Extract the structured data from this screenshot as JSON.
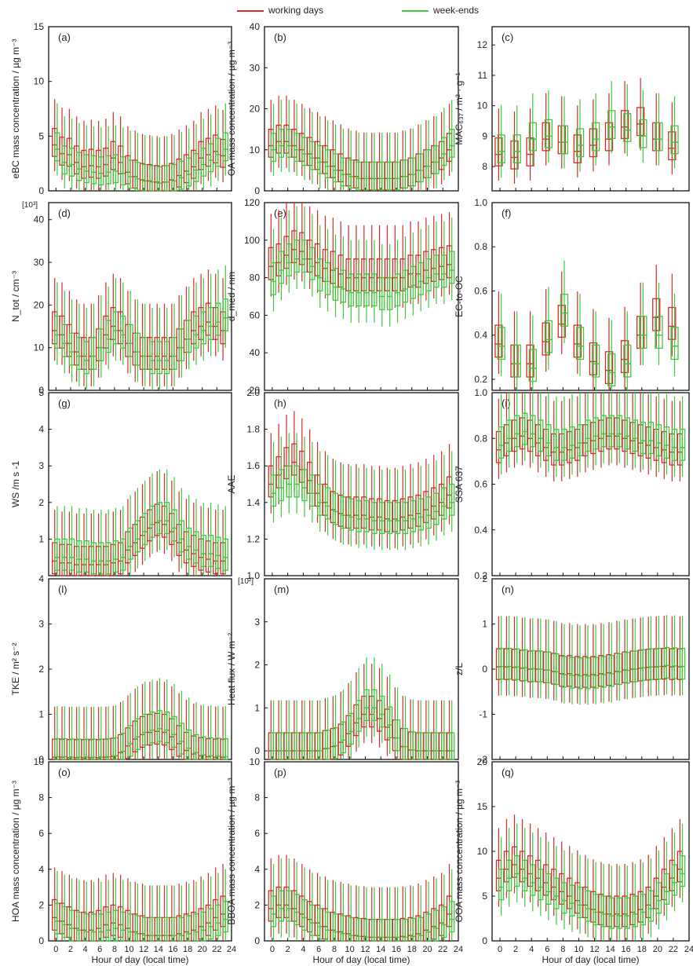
{
  "legend": {
    "working_label": "working days",
    "weekend_label": "week-ends"
  },
  "colors": {
    "working": "#d42a2a",
    "weekend": "#3dc83d",
    "frame": "#111111"
  },
  "chart_data": [
    {
      "id": "a",
      "type": "box",
      "panel_label": "(a)",
      "ylabel": "eBC mass concentration / µg m⁻³",
      "ylim": [
        0,
        15
      ],
      "yticks": [
        0,
        5,
        10,
        15
      ],
      "ytick_labels": [
        "0",
        "5",
        "10",
        "15"
      ],
      "working_median": [
        4.2,
        3.4,
        3.3,
        2.6,
        2.2,
        2.3,
        2.2,
        2.4,
        3.0,
        2.6,
        1.7,
        1.3,
        1.0,
        0.9,
        0.8,
        0.8,
        1.0,
        1.4,
        1.8,
        2.2,
        3.0,
        3.3,
        3.6,
        3.2
      ],
      "weekend_median": [
        3.8,
        2.6,
        2.4,
        2.0,
        1.8,
        1.7,
        1.6,
        1.7,
        1.8,
        1.6,
        1.3,
        1.1,
        0.9,
        0.8,
        0.7,
        0.8,
        0.9,
        1.2,
        1.5,
        1.9,
        2.4,
        2.8,
        3.3,
        3.8
      ]
    },
    {
      "id": "b",
      "type": "box",
      "panel_label": "(b)",
      "ylabel": "OA mass concentration / µg m⁻³",
      "ylim": [
        0,
        40
      ],
      "yticks": [
        0,
        10,
        20,
        30,
        40
      ],
      "ytick_labels": [
        "0",
        "10",
        "20",
        "30",
        "40"
      ],
      "working_median": [
        11,
        12,
        12,
        11,
        10,
        9,
        8,
        7,
        6,
        5,
        4,
        3.5,
        3,
        3,
        3,
        3,
        3,
        3.5,
        4,
        5,
        6,
        7,
        8,
        10
      ],
      "weekend_median": [
        10,
        11,
        11,
        10,
        9,
        8,
        7,
        6,
        5,
        4,
        3.5,
        3,
        3,
        3,
        3,
        3,
        3,
        3.5,
        4,
        5,
        6,
        7,
        9,
        11
      ]
    },
    {
      "id": "c",
      "type": "box",
      "panel_label": "(c)",
      "ylabel": "MAC₆₃₇ / m² · g⁻¹",
      "ylim": [
        7.2,
        12.6
      ],
      "yticks": [
        8,
        9,
        10,
        11,
        12
      ],
      "ytick_labels": [
        "8",
        "9",
        "10",
        "11",
        "12"
      ],
      "working_median": [
        8.4,
        8.3,
        8.4,
        8.9,
        8.8,
        8.5,
        8.7,
        8.9,
        9.3,
        9.4,
        8.9,
        8.6
      ],
      "weekend_median": [
        8.5,
        8.5,
        8.9,
        9.0,
        8.8,
        8.7,
        8.9,
        9.3,
        9.2,
        9.0,
        8.9,
        8.8
      ]
    },
    {
      "id": "d",
      "type": "box",
      "panel_label": "(d)",
      "ylabel": "N_tot / cm⁻³",
      "ylim": [
        0,
        44
      ],
      "yticks": [
        0,
        10,
        20,
        30,
        40
      ],
      "ytick_labels": [
        "0",
        "10",
        "20",
        "30",
        "40"
      ],
      "y_multiplier": "[10³]",
      "working_median": [
        14,
        13,
        11,
        9,
        8,
        8,
        10,
        13,
        15,
        14,
        11,
        9,
        8,
        8,
        8,
        8,
        8,
        10,
        12,
        14,
        15,
        16,
        15,
        14
      ],
      "weekend_median": [
        13,
        11,
        9,
        8,
        7,
        8,
        10,
        12,
        14,
        13,
        11,
        9,
        8,
        7,
        7,
        7,
        8,
        10,
        12,
        13,
        14,
        15,
        16,
        17
      ]
    },
    {
      "id": "e",
      "type": "box",
      "panel_label": "(e)",
      "ylabel": "d_med / nm",
      "ylim": [
        20,
        120
      ],
      "yticks": [
        20,
        40,
        60,
        80,
        100,
        120
      ],
      "ytick_labels": [
        "20",
        "40",
        "60",
        "80",
        "100",
        "120"
      ],
      "working_median": [
        86,
        88,
        92,
        95,
        94,
        90,
        88,
        85,
        84,
        82,
        80,
        80,
        80,
        80,
        80,
        80,
        80,
        80,
        82,
        82,
        84,
        85,
        86,
        87
      ],
      "weekend_median": [
        78,
        84,
        88,
        90,
        90,
        86,
        80,
        78,
        75,
        74,
        72,
        72,
        72,
        72,
        70,
        70,
        72,
        74,
        76,
        78,
        80,
        82,
        82,
        84
      ]
    },
    {
      "id": "f",
      "type": "box",
      "panel_label": "(f)",
      "ylabel": "EC-to-OC",
      "ylim": [
        0.15,
        1.0
      ],
      "yticks": [
        0.2,
        0.4,
        0.6,
        0.8,
        1.0
      ],
      "ytick_labels": [
        "0.2",
        "0.4",
        "0.6",
        "0.8",
        "1.0"
      ],
      "working_median": [
        0.36,
        0.27,
        0.27,
        0.37,
        0.45,
        0.36,
        0.28,
        0.24,
        0.29,
        0.4,
        0.48,
        0.44
      ],
      "weekend_median": [
        0.35,
        0.27,
        0.25,
        0.38,
        0.5,
        0.35,
        0.27,
        0.23,
        0.27,
        0.4,
        0.4,
        0.35
      ]
    },
    {
      "id": "g",
      "type": "box",
      "panel_label": "(g)",
      "ylabel": "WS /m s -1",
      "ylim": [
        0,
        5
      ],
      "yticks": [
        1,
        2,
        3,
        4,
        5
      ],
      "ytick_labels": [
        "1",
        "2",
        "3",
        "4",
        "5"
      ],
      "working_median": [
        0.4,
        0.35,
        0.35,
        0.3,
        0.3,
        0.3,
        0.3,
        0.3,
        0.35,
        0.4,
        0.7,
        0.9,
        1.1,
        1.3,
        1.45,
        1.4,
        1.2,
        0.9,
        0.7,
        0.6,
        0.5,
        0.45,
        0.4,
        0.4
      ],
      "weekend_median": [
        0.5,
        0.5,
        0.5,
        0.45,
        0.45,
        0.4,
        0.4,
        0.4,
        0.45,
        0.5,
        0.8,
        1.0,
        1.2,
        1.4,
        1.5,
        1.5,
        1.3,
        1.0,
        0.8,
        0.7,
        0.6,
        0.6,
        0.55,
        0.5
      ]
    },
    {
      "id": "h",
      "type": "box",
      "panel_label": "(h)",
      "ylabel": "AAE",
      "ylim": [
        1.0,
        2.0
      ],
      "yticks": [
        1.0,
        1.2,
        1.4,
        1.6,
        1.8,
        2.0
      ],
      "ytick_labels": [
        "1.0",
        "1.2",
        "1.4",
        "1.6",
        "1.8",
        "2.0"
      ],
      "working_median": [
        1.5,
        1.55,
        1.6,
        1.62,
        1.58,
        1.52,
        1.45,
        1.4,
        1.36,
        1.34,
        1.33,
        1.33,
        1.33,
        1.32,
        1.32,
        1.31,
        1.31,
        1.32,
        1.33,
        1.34,
        1.36,
        1.38,
        1.4,
        1.44
      ],
      "weekend_median": [
        1.45,
        1.48,
        1.5,
        1.5,
        1.48,
        1.45,
        1.4,
        1.38,
        1.35,
        1.33,
        1.32,
        1.31,
        1.31,
        1.3,
        1.3,
        1.3,
        1.3,
        1.3,
        1.31,
        1.32,
        1.33,
        1.35,
        1.38,
        1.4
      ]
    },
    {
      "id": "i",
      "type": "box",
      "panel_label": "(i)",
      "ylabel": "SSA 637",
      "ylim": [
        0.2,
        1.0
      ],
      "yticks": [
        0.2,
        0.4,
        0.6,
        0.8,
        1.0
      ],
      "ytick_labels": [
        "0.2",
        "0.4",
        "0.6",
        "0.8",
        "1.0"
      ],
      "working_median": [
        0.75,
        0.78,
        0.8,
        0.81,
        0.8,
        0.78,
        0.76,
        0.74,
        0.74,
        0.75,
        0.76,
        0.78,
        0.79,
        0.8,
        0.81,
        0.81,
        0.8,
        0.79,
        0.78,
        0.77,
        0.76,
        0.75,
        0.74,
        0.74
      ],
      "weekend_median": [
        0.77,
        0.8,
        0.82,
        0.83,
        0.82,
        0.8,
        0.78,
        0.76,
        0.76,
        0.77,
        0.78,
        0.8,
        0.81,
        0.82,
        0.82,
        0.82,
        0.81,
        0.8,
        0.79,
        0.79,
        0.78,
        0.77,
        0.76,
        0.76
      ]
    },
    {
      "id": "l",
      "type": "box",
      "panel_label": "(l)",
      "ylabel": "TKE / m² s⁻²",
      "ylim": [
        0,
        4
      ],
      "yticks": [
        0,
        1,
        2,
        3,
        4
      ],
      "ytick_labels": [
        "0",
        "1",
        "2",
        "3",
        "4"
      ],
      "working_median": [
        0.05,
        0.05,
        0.04,
        0.04,
        0.04,
        0.04,
        0.04,
        0.05,
        0.07,
        0.15,
        0.3,
        0.45,
        0.55,
        0.6,
        0.62,
        0.6,
        0.5,
        0.35,
        0.2,
        0.12,
        0.08,
        0.06,
        0.05,
        0.05
      ],
      "weekend_median": [
        0.06,
        0.06,
        0.05,
        0.05,
        0.05,
        0.05,
        0.05,
        0.06,
        0.08,
        0.18,
        0.35,
        0.5,
        0.6,
        0.65,
        0.68,
        0.65,
        0.55,
        0.4,
        0.25,
        0.15,
        0.1,
        0.08,
        0.07,
        0.06
      ]
    },
    {
      "id": "m",
      "type": "box",
      "panel_label": "(m)",
      "ylabel": "Heat flux / W m⁻²",
      "ylim": [
        -0.2,
        4
      ],
      "yticks": [
        0,
        1,
        2,
        3
      ],
      "ytick_labels": [
        "0",
        "1",
        "2",
        "3"
      ],
      "y_multiplier": "[10²]",
      "working_median": [
        0.0,
        0.0,
        0.0,
        0.0,
        0.0,
        0.0,
        0.0,
        0.05,
        0.1,
        0.2,
        0.4,
        0.65,
        0.85,
        0.85,
        0.75,
        0.55,
        0.3,
        0.1,
        0.02,
        0.0,
        0.0,
        0.0,
        0.0,
        0.0
      ],
      "weekend_median": [
        0.0,
        0.0,
        0.0,
        0.0,
        0.0,
        0.0,
        0.0,
        0.06,
        0.12,
        0.25,
        0.45,
        0.75,
        1.0,
        1.0,
        0.85,
        0.6,
        0.3,
        0.1,
        0.02,
        0.0,
        0.0,
        0.0,
        0.0,
        0.0
      ]
    },
    {
      "id": "n",
      "type": "box",
      "panel_label": "(n)",
      "ylabel": "z/L",
      "ylim": [
        -2,
        2
      ],
      "yticks": [
        -2,
        -1,
        0,
        1,
        2
      ],
      "ytick_labels": [
        "-2",
        "-1",
        "0",
        "1",
        "2"
      ],
      "working_median": [
        0.05,
        0.05,
        0.04,
        0.02,
        0.0,
        0.0,
        -0.02,
        -0.05,
        -0.1,
        -0.1,
        -0.12,
        -0.12,
        -0.12,
        -0.1,
        -0.08,
        -0.05,
        -0.02,
        0.0,
        0.02,
        0.04,
        0.05,
        0.06,
        0.05,
        0.05
      ],
      "weekend_median": [
        0.06,
        0.06,
        0.05,
        0.03,
        0.01,
        0.0,
        -0.02,
        -0.06,
        -0.12,
        -0.14,
        -0.15,
        -0.15,
        -0.14,
        -0.12,
        -0.1,
        -0.06,
        -0.03,
        0.0,
        0.03,
        0.05,
        0.06,
        0.08,
        0.07,
        0.06
      ]
    },
    {
      "id": "o",
      "type": "box",
      "panel_label": "(o)",
      "ylabel": "HOA mass concentration / µg m⁻³",
      "ylim": [
        0,
        10
      ],
      "yticks": [
        0,
        2,
        4,
        6,
        8,
        10
      ],
      "ytick_labels": [
        "0",
        "2",
        "4",
        "6",
        "8",
        "10"
      ],
      "working_median": [
        1.3,
        1.1,
        0.9,
        0.7,
        0.6,
        0.6,
        0.7,
        0.9,
        1.0,
        0.9,
        0.7,
        0.5,
        0.4,
        0.3,
        0.3,
        0.3,
        0.3,
        0.4,
        0.5,
        0.6,
        0.8,
        1.0,
        1.3,
        1.5
      ],
      "weekend_median": [
        1.1,
        0.9,
        0.7,
        0.6,
        0.5,
        0.5,
        0.5,
        0.6,
        0.7,
        0.6,
        0.5,
        0.4,
        0.3,
        0.3,
        0.3,
        0.3,
        0.3,
        0.3,
        0.4,
        0.5,
        0.6,
        0.8,
        1.0,
        1.2
      ]
    },
    {
      "id": "p",
      "type": "box",
      "panel_label": "(p)",
      "ylabel": "BBOA mass concentration / µg m⁻³",
      "ylim": [
        0,
        10
      ],
      "yticks": [
        0,
        2,
        4,
        6,
        8,
        10
      ],
      "ytick_labels": [
        "0",
        "2",
        "4",
        "6",
        "8",
        "10"
      ],
      "working_median": [
        1.8,
        2.0,
        2.0,
        1.8,
        1.5,
        1.2,
        1.0,
        0.8,
        0.6,
        0.5,
        0.4,
        0.3,
        0.25,
        0.2,
        0.2,
        0.2,
        0.2,
        0.25,
        0.3,
        0.4,
        0.6,
        0.8,
        1.0,
        1.5
      ],
      "weekend_median": [
        1.5,
        1.8,
        1.8,
        1.6,
        1.3,
        1.0,
        0.8,
        0.6,
        0.5,
        0.4,
        0.3,
        0.25,
        0.2,
        0.2,
        0.2,
        0.2,
        0.2,
        0.2,
        0.25,
        0.3,
        0.5,
        0.7,
        0.9,
        1.2
      ]
    },
    {
      "id": "q",
      "type": "box",
      "panel_label": "(q)",
      "ylabel": "OOA mass concentration / µg m⁻³",
      "ylim": [
        0,
        20
      ],
      "yticks": [
        0,
        5,
        10,
        15,
        20
      ],
      "ytick_labels": [
        "0",
        "5",
        "10",
        "15",
        "20"
      ],
      "working_median": [
        7,
        8,
        8.5,
        8,
        7.5,
        7,
        6.5,
        6,
        5.5,
        5,
        4.5,
        4,
        3.5,
        3.2,
        3,
        3,
        3,
        3.2,
        3.5,
        4,
        5,
        6,
        7,
        8
      ],
      "weekend_median": [
        6,
        7,
        7.5,
        7,
        6.5,
        6,
        5.5,
        5,
        4.5,
        4.2,
        4,
        3.6,
        3.2,
        3,
        2.8,
        2.8,
        2.8,
        3,
        3.2,
        3.6,
        4.5,
        5.5,
        6.5,
        7.5
      ]
    }
  ],
  "xaxis": {
    "ticks": [
      0,
      2,
      4,
      6,
      8,
      10,
      12,
      14,
      16,
      18,
      20,
      22,
      24
    ],
    "xlim": [
      -1,
      24
    ],
    "label": "Hour of day (local time)"
  }
}
